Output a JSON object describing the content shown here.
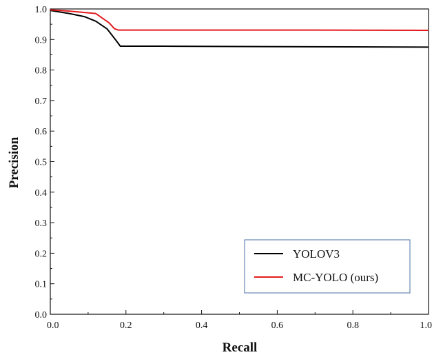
{
  "chart_data": {
    "type": "line",
    "title": "",
    "xlabel": "Recall",
    "ylabel": "Precision",
    "xlim": [
      0.0,
      1.0
    ],
    "ylim": [
      0.0,
      1.0
    ],
    "grid": false,
    "legend_position": "bottom-right",
    "x_tick_labels": [
      "0.0",
      "0.2",
      "0.4",
      "0.6",
      "0.8",
      "1.0"
    ],
    "y_tick_labels": [
      "0.0",
      "0.1",
      "0.2",
      "0.3",
      "0.4",
      "0.5",
      "0.6",
      "0.7",
      "0.8",
      "0.9",
      "1.0"
    ],
    "series": [
      {
        "name": "YOLOV3",
        "color": "#000000",
        "x": [
          0.0,
          0.05,
          0.09,
          0.12,
          0.15,
          0.175,
          0.185,
          0.3,
          0.5,
          0.7,
          1.0
        ],
        "y": [
          0.995,
          0.985,
          0.975,
          0.96,
          0.935,
          0.895,
          0.878,
          0.878,
          0.877,
          0.876,
          0.875
        ]
      },
      {
        "name": "MC-YOLO (ours)",
        "color": "#e31a1c",
        "x": [
          0.0,
          0.05,
          0.12,
          0.155,
          0.17,
          0.18,
          0.3,
          0.5,
          0.7,
          1.0
        ],
        "y": [
          0.997,
          0.993,
          0.985,
          0.955,
          0.935,
          0.931,
          0.931,
          0.931,
          0.931,
          0.93
        ]
      }
    ]
  }
}
